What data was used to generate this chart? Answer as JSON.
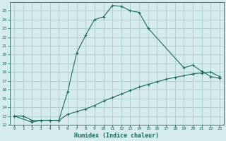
{
  "xlabel": "Humidex (Indice chaleur)",
  "bg_color": "#d6ecec",
  "grid_color": "#aacccc",
  "line_color": "#1a6b5a",
  "xlim": [
    -0.5,
    23.5
  ],
  "ylim": [
    12,
    26
  ],
  "xticks": [
    0,
    1,
    2,
    3,
    4,
    5,
    6,
    7,
    8,
    9,
    10,
    11,
    12,
    13,
    14,
    15,
    16,
    17,
    18,
    19,
    20,
    21,
    22,
    23
  ],
  "yticks": [
    12,
    13,
    14,
    15,
    16,
    17,
    18,
    19,
    20,
    21,
    22,
    23,
    24,
    25
  ],
  "curve1_x": [
    0,
    1,
    2,
    3,
    4,
    5,
    6,
    7,
    8,
    9,
    10,
    11,
    12,
    13,
    14,
    15,
    19,
    20,
    21,
    22,
    23
  ],
  "curve1_y": [
    13.0,
    13.0,
    12.5,
    12.5,
    12.5,
    12.5,
    15.8,
    20.2,
    22.2,
    24.0,
    24.3,
    25.6,
    25.5,
    25.0,
    24.8,
    23.0,
    18.5,
    18.8,
    18.1,
    17.5,
    17.3
  ],
  "curve2_x": [
    0,
    2,
    3,
    4,
    5,
    6,
    7,
    8,
    9,
    10,
    11,
    12,
    13,
    14,
    15,
    16,
    17,
    18,
    19,
    20,
    21,
    22,
    23
  ],
  "curve2_y": [
    13.0,
    12.3,
    12.5,
    12.5,
    12.5,
    13.2,
    13.5,
    13.8,
    14.2,
    14.7,
    15.1,
    15.5,
    15.9,
    16.3,
    16.6,
    16.9,
    17.2,
    17.4,
    17.6,
    17.8,
    17.9,
    18.0,
    17.5
  ]
}
